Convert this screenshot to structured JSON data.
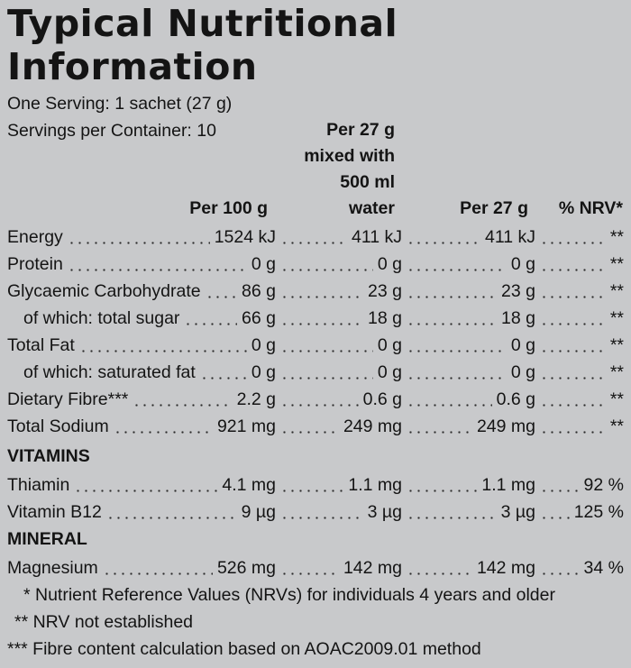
{
  "title_line1": "Typical Nutritional",
  "title_line2": "Information",
  "serving": "One Serving: 1 sachet (27 g)",
  "servings_per_container": "Servings per Container: 10",
  "headers": {
    "per100": "Per 100 g",
    "mixed_l1": "Per 27 g",
    "mixed_l2": "mixed with",
    "mixed_l3": "500 ml",
    "mixed_l4": "water",
    "per27": "Per 27 g",
    "nrv": "% NRV*"
  },
  "rows": [
    {
      "label": "Energy",
      "per100": "1524 kJ",
      "mixed": "411 kJ",
      "per27": "411 kJ",
      "nrv": "**"
    },
    {
      "label": "Protein",
      "per100": "0 g",
      "mixed": "0 g",
      "per27": "0 g",
      "nrv": "**"
    },
    {
      "label": "Glycaemic Carbohydrate",
      "per100": "86 g",
      "mixed": "23 g",
      "per27": "23 g",
      "nrv": "**"
    },
    {
      "label": "of which: total sugar",
      "per100": "66 g",
      "mixed": "18 g",
      "per27": "18 g",
      "nrv": "**"
    },
    {
      "label": "Total Fat",
      "per100": "0 g",
      "mixed": "0 g",
      "per27": "0 g",
      "nrv": "**"
    },
    {
      "label": "of which: saturated fat",
      "per100": "0 g",
      "mixed": "0 g",
      "per27": "0 g",
      "nrv": "**"
    },
    {
      "label": "Dietary Fibre***",
      "per100": "2.2 g",
      "mixed": "0.6 g",
      "per27": "0.6 g",
      "nrv": "**"
    },
    {
      "label": "Total Sodium",
      "per100": "921 mg",
      "mixed": "249 mg",
      "per27": "249 mg",
      "nrv": "**"
    }
  ],
  "vitamins_heading": "VITAMINS",
  "vitamins": [
    {
      "label": "Thiamin",
      "per100": "4.1 mg",
      "mixed": "1.1 mg",
      "per27": "1.1 mg",
      "nrv": "92 %"
    },
    {
      "label": "Vitamin B12",
      "per100": "9 µg",
      "mixed": "3 µg",
      "per27": "3 µg",
      "nrv": "125 %"
    }
  ],
  "mineral_heading": "MINERAL",
  "minerals": [
    {
      "label": "Magnesium",
      "per100": "526 mg",
      "mixed": "142 mg",
      "per27": "142 mg",
      "nrv": "34 %"
    }
  ],
  "footnotes": [
    "* Nutrient Reference Values (NRVs) for individuals 4 years and older",
    "** NRV not established",
    "*** Fibre content calculation based on AOAC2009.01 method"
  ]
}
